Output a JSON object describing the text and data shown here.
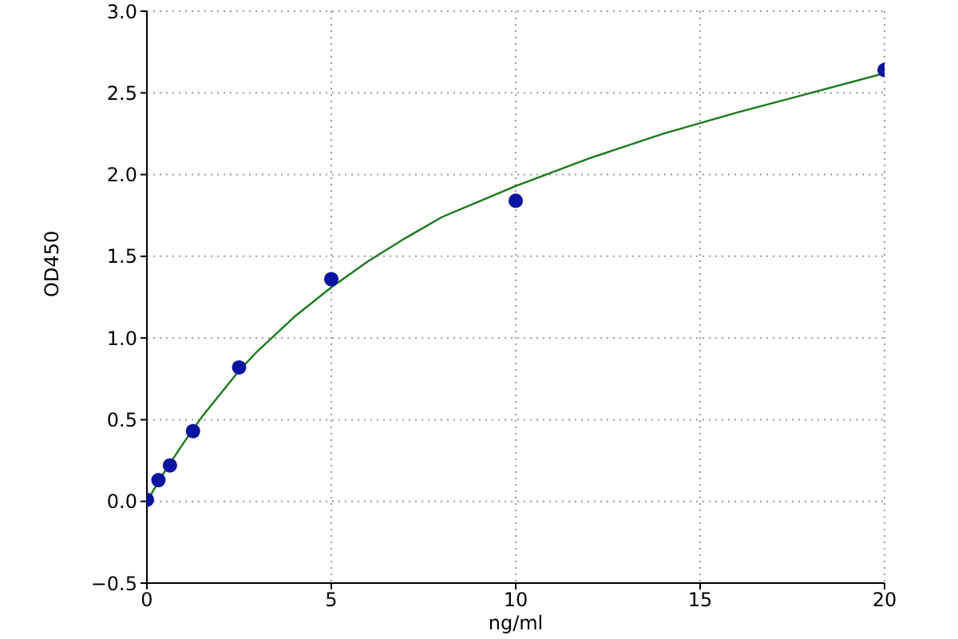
{
  "chart_data": {
    "type": "scatter",
    "xlabel": "ng/ml",
    "ylabel": "OD450",
    "xlim": [
      0,
      20
    ],
    "xticks": [
      0,
      5,
      10,
      15,
      20
    ],
    "ylim": [
      -0.5,
      3.0
    ],
    "yticks": [
      {
        "value": -0.5,
        "label": "−0.5"
      },
      {
        "value": 0,
        "label": "0.0"
      },
      {
        "value": 0.5,
        "label": "0.5"
      },
      {
        "value": 1,
        "label": "1.0"
      },
      {
        "value": 1.5,
        "label": "1.5"
      },
      {
        "value": 2,
        "label": "2.0"
      },
      {
        "value": 2.5,
        "label": "2.5"
      },
      {
        "value": 3,
        "label": "3.0"
      }
    ],
    "grid": true,
    "series": [
      {
        "marker": "circle",
        "color": "#0a14a0",
        "x": [
          0,
          0.3125,
          0.625,
          1.25,
          2.5,
          5,
          10,
          20
        ],
        "values": [
          0.01,
          0.13,
          0.22,
          0.43,
          0.82,
          1.36,
          1.84,
          2.64
        ]
      },
      {
        "type": "line",
        "color": "#1a7a1a",
        "x": [
          0,
          0.5,
          1,
          1.5,
          2,
          2.5,
          3,
          4,
          5,
          6,
          7,
          8,
          10,
          12,
          14,
          16,
          18,
          20
        ],
        "values": [
          0.0,
          0.19,
          0.36,
          0.52,
          0.66,
          0.8,
          0.92,
          1.13,
          1.31,
          1.47,
          1.61,
          1.74,
          1.93,
          2.1,
          2.25,
          2.38,
          2.5,
          2.62
        ]
      }
    ]
  }
}
